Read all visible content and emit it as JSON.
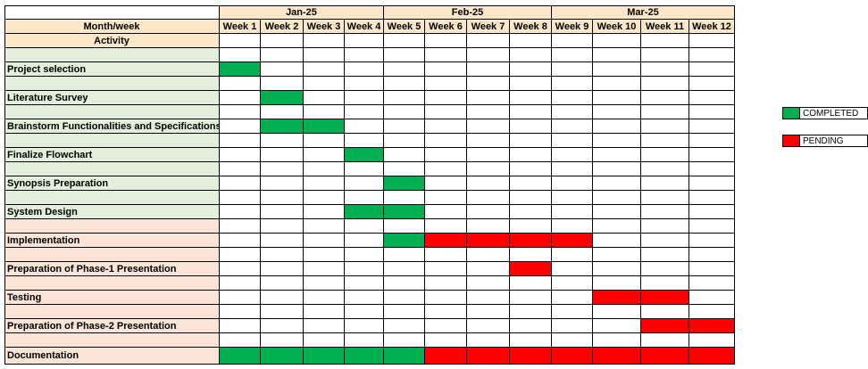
{
  "colors": {
    "header_fill": "#FCE8C8",
    "completed_phase_fill": "#E2EFDA",
    "pending_phase_fill": "#FCE4D6",
    "completed": "#00B050",
    "pending": "#FF0000",
    "empty": "#FFFFFF"
  },
  "header": {
    "row_label": "Month/week",
    "activity_label": "Activity",
    "months": [
      {
        "label": "Jan-25",
        "weeks": 4
      },
      {
        "label": "Feb-25",
        "weeks": 4
      },
      {
        "label": "Mar-25",
        "weeks": 4
      }
    ],
    "weeks": [
      "Week 1",
      "Week 2",
      "Week 3",
      "Week 4",
      "Week 5",
      "Week 6",
      "Week 7",
      "Week 8",
      "Week 9",
      "Week 10",
      "Week 11",
      "Week 12"
    ]
  },
  "activities": [
    {
      "name": "Project selection",
      "phase": "completed",
      "status": [
        "completed",
        "",
        "",
        "",
        "",
        "",
        "",
        "",
        "",
        "",
        "",
        ""
      ]
    },
    {
      "name": "Literature Survey",
      "phase": "completed",
      "status": [
        "",
        "completed",
        "",
        "",
        "",
        "",
        "",
        "",
        "",
        "",
        "",
        ""
      ]
    },
    {
      "name": "Brainstorm Functionalities and Specifications",
      "phase": "completed",
      "status": [
        "",
        "completed",
        "completed",
        "",
        "",
        "",
        "",
        "",
        "",
        "",
        "",
        ""
      ]
    },
    {
      "name": "Finalize Flowchart",
      "phase": "completed",
      "status": [
        "",
        "",
        "",
        "completed",
        "",
        "",
        "",
        "",
        "",
        "",
        "",
        ""
      ]
    },
    {
      "name": "Synopsis Preparation",
      "phase": "completed",
      "status": [
        "",
        "",
        "",
        "",
        "completed",
        "",
        "",
        "",
        "",
        "",
        "",
        ""
      ]
    },
    {
      "name": "System Design",
      "phase": "completed",
      "status": [
        "",
        "",
        "",
        "completed",
        "completed",
        "",
        "",
        "",
        "",
        "",
        "",
        ""
      ]
    },
    {
      "name": "Implementation",
      "phase": "pending",
      "status": [
        "",
        "",
        "",
        "",
        "completed",
        "pending",
        "pending",
        "pending",
        "pending",
        "",
        "",
        ""
      ]
    },
    {
      "name": "Preparation of Phase-1 Presentation",
      "phase": "pending",
      "status": [
        "",
        "",
        "",
        "",
        "",
        "",
        "",
        "pending",
        "",
        "",
        "",
        ""
      ]
    },
    {
      "name": "Testing",
      "phase": "pending",
      "status": [
        "",
        "",
        "",
        "",
        "",
        "",
        "",
        "",
        "",
        "pending",
        "pending",
        ""
      ]
    },
    {
      "name": "Preparation of Phase-2 Presentation",
      "phase": "pending",
      "status": [
        "",
        "",
        "",
        "",
        "",
        "",
        "",
        "",
        "",
        "",
        "pending",
        "pending"
      ]
    },
    {
      "name": "Documentation",
      "phase": "pending",
      "status": [
        "completed",
        "completed",
        "completed",
        "completed",
        "completed",
        "pending",
        "pending",
        "pending",
        "pending",
        "pending",
        "pending",
        "pending"
      ]
    }
  ],
  "legend": [
    {
      "label": "COMPLETED",
      "status": "completed"
    },
    {
      "label": "PENDING",
      "status": "pending"
    }
  ]
}
